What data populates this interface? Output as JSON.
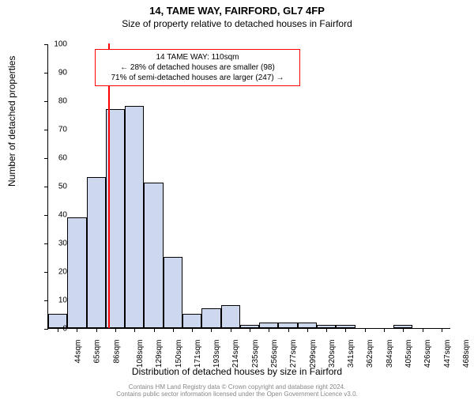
{
  "title": "14, TAME WAY, FAIRFORD, GL7 4FP",
  "subtitle": "Size of property relative to detached houses in Fairford",
  "ylabel": "Number of detached properties",
  "xlabel": "Distribution of detached houses by size in Fairford",
  "chart": {
    "type": "histogram",
    "ylim": [
      0,
      100
    ],
    "ytick_step": 10,
    "xticks": [
      "44sqm",
      "65sqm",
      "86sqm",
      "108sqm",
      "129sqm",
      "150sqm",
      "171sqm",
      "193sqm",
      "214sqm",
      "235sqm",
      "256sqm",
      "277sqm",
      "299sqm",
      "320sqm",
      "341sqm",
      "362sqm",
      "384sqm",
      "405sqm",
      "426sqm",
      "447sqm",
      "468sqm"
    ],
    "bars": [
      5,
      39,
      53,
      77,
      78,
      51,
      25,
      5,
      7,
      8,
      1,
      2,
      2,
      2,
      1,
      1,
      0,
      0,
      1,
      0,
      0
    ],
    "bar_fill": "#cdd8ef",
    "bar_border": "#000000",
    "plot_bg": "#ffffff",
    "marker_line": {
      "color": "#ff0000",
      "bin_index": 3,
      "fraction_in_bin": 0.12
    }
  },
  "annotation": {
    "lines": [
      "14 TAME WAY: 110sqm",
      "← 28% of detached houses are smaller (98)",
      "71% of semi-detached houses are larger (247) →"
    ],
    "border_color": "#ff0000"
  },
  "footer": {
    "line1": "Contains HM Land Registry data © Crown copyright and database right 2024.",
    "line2": "Contains public sector information licensed under the Open Government Licence v3.0."
  }
}
